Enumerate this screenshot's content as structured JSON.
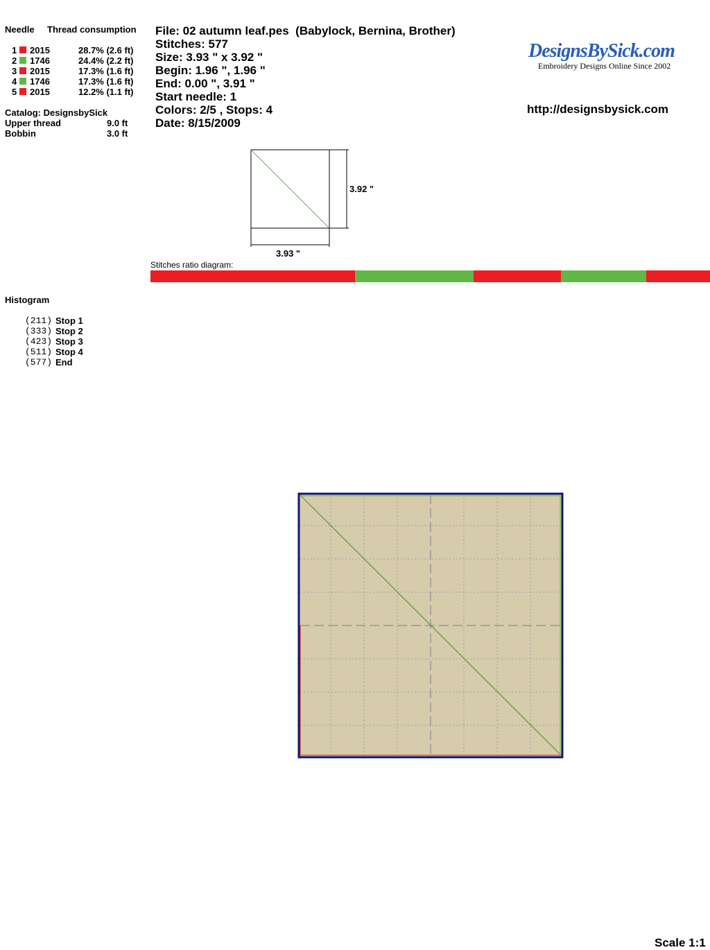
{
  "needle_table": {
    "headers": [
      "Needle",
      "Thread consumption"
    ],
    "rows": [
      {
        "needle": "1",
        "color": "#ee1c24",
        "code": "2015",
        "consumption": "28.7% (2.6 ft)"
      },
      {
        "needle": "2",
        "color": "#62b847",
        "code": "1746",
        "consumption": "24.4% (2.2 ft)"
      },
      {
        "needle": "3",
        "color": "#ee1c24",
        "code": "2015",
        "consumption": "17.3% (1.6 ft)"
      },
      {
        "needle": "4",
        "color": "#62b847",
        "code": "1746",
        "consumption": "17.3% (1.6 ft)"
      },
      {
        "needle": "5",
        "color": "#ee1c24",
        "code": "2015",
        "consumption": "12.2% (1.1 ft)"
      }
    ]
  },
  "catalog": "Catalog: DesignsbySick",
  "totals": [
    {
      "label": "Upper thread",
      "value": "9.0 ft"
    },
    {
      "label": "Bobbin",
      "value": "3.0 ft"
    }
  ],
  "info": [
    "File: 02 autumn leaf.pes  (Babylock, Bernina, Brother)",
    "Stitches: 577",
    "Size: 3.93 \" x 3.92 \"",
    "Begin: 1.96 \", 1.96 \"",
    "End: 0.00 \", 3.91 \"",
    "Start needle: 1",
    "Colors: 2/5 , Stops: 4",
    "Date: 8/15/2009"
  ],
  "logo": {
    "title": "DesignsBySick.com",
    "tagline": "Embroidery Designs Online Since 2002"
  },
  "url": "http://designsbysick.com",
  "dimensions": {
    "height": "3.92 \"",
    "width": "3.93 \""
  },
  "stitches_ratio": {
    "label": "Stitches ratio diagram:",
    "segments": [
      {
        "color": "#ee1c24",
        "value": 211
      },
      {
        "color": "#62b847",
        "value": 122
      },
      {
        "color": "#ee1c24",
        "value": 90
      },
      {
        "color": "#62b847",
        "value": 88
      },
      {
        "color": "#ee1c24",
        "value": 66
      }
    ]
  },
  "histogram": {
    "title": "Histogram",
    "entries": [
      {
        "count": "(211)",
        "label": "Stop 1"
      },
      {
        "count": "(333)",
        "label": "Stop 2"
      },
      {
        "count": "(423)",
        "label": "Stop 3"
      },
      {
        "count": "(511)",
        "label": "Stop 4"
      },
      {
        "count": "(577)",
        "label": "End"
      }
    ]
  },
  "scale": "Scale 1:1"
}
